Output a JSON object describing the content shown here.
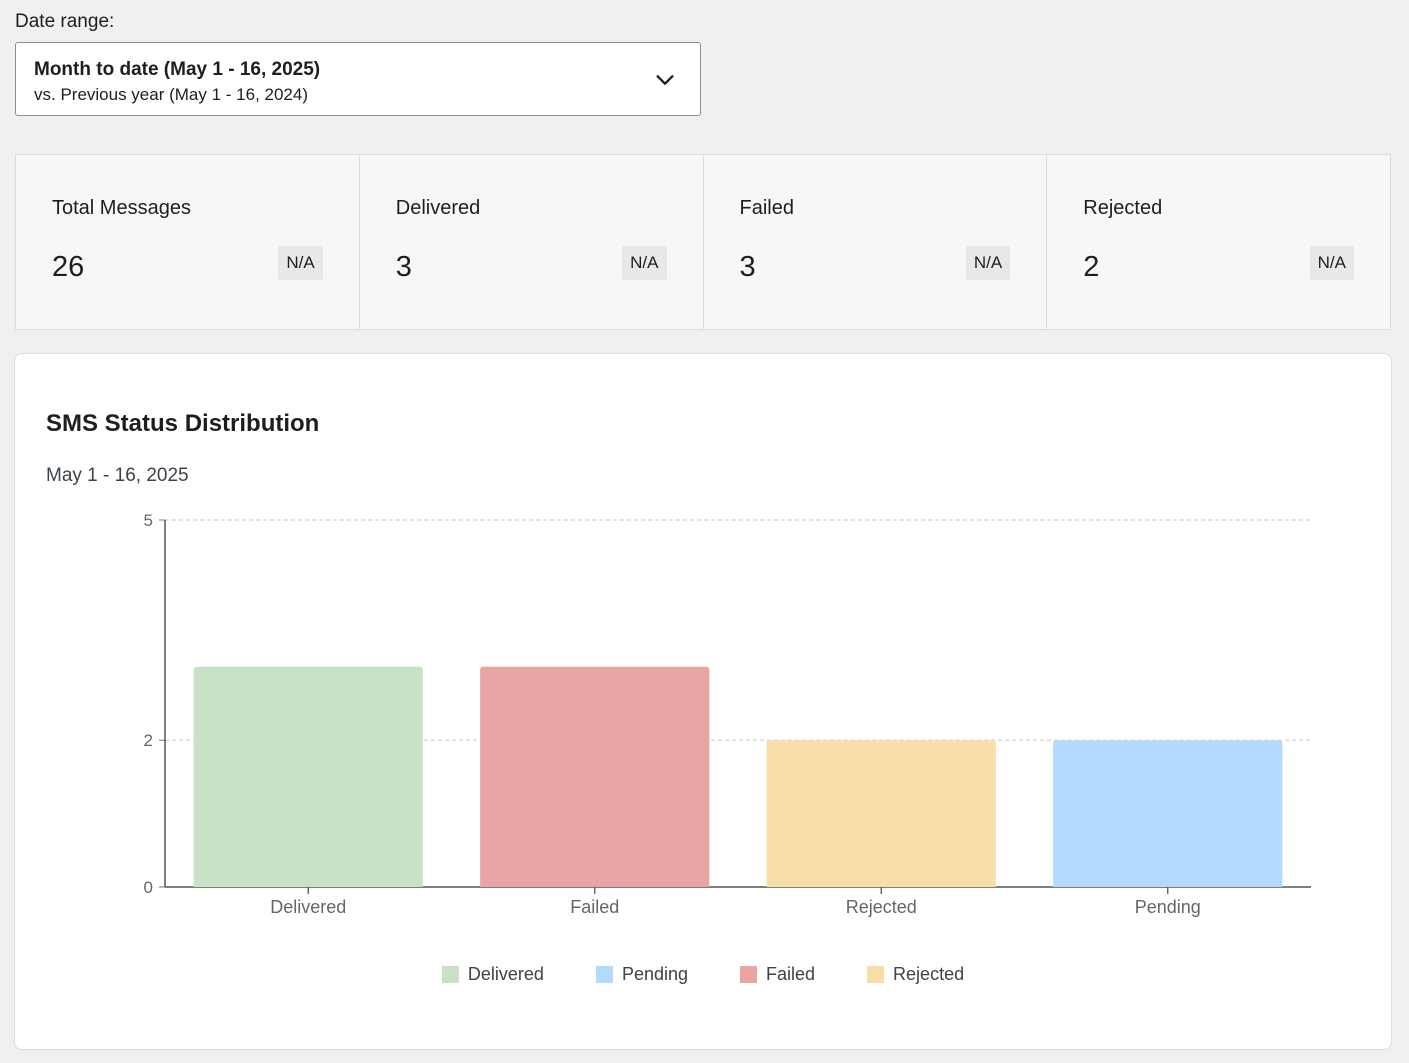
{
  "date_range": {
    "label": "Date range:",
    "primary": "Month to date (May 1 - 16, 2025)",
    "secondary": "vs. Previous year (May 1 - 16, 2024)"
  },
  "stats": [
    {
      "label": "Total Messages",
      "value": "26",
      "delta": "N/A"
    },
    {
      "label": "Delivered",
      "value": "3",
      "delta": "N/A"
    },
    {
      "label": "Failed",
      "value": "3",
      "delta": "N/A"
    },
    {
      "label": "Rejected",
      "value": "2",
      "delta": "N/A"
    }
  ],
  "chart": {
    "title": "SMS Status Distribution",
    "subtitle": "May 1 - 16, 2025"
  },
  "legend": [
    {
      "label": "Delivered",
      "color": "#c8e2c8"
    },
    {
      "label": "Pending",
      "color": "#b3d9ff"
    },
    {
      "label": "Failed",
      "color": "#e9a4a4"
    },
    {
      "label": "Rejected",
      "color": "#f7dea6"
    }
  ],
  "chart_data": {
    "type": "bar",
    "categories": [
      "Delivered",
      "Failed",
      "Rejected",
      "Pending"
    ],
    "values": [
      3,
      3,
      2,
      2
    ],
    "colors": [
      "#c8e2c8",
      "#e9a4a4",
      "#f7dea6",
      "#b3d9ff"
    ],
    "yticks": [
      0,
      2,
      5
    ],
    "ylim": [
      0,
      5
    ],
    "grid": true
  }
}
